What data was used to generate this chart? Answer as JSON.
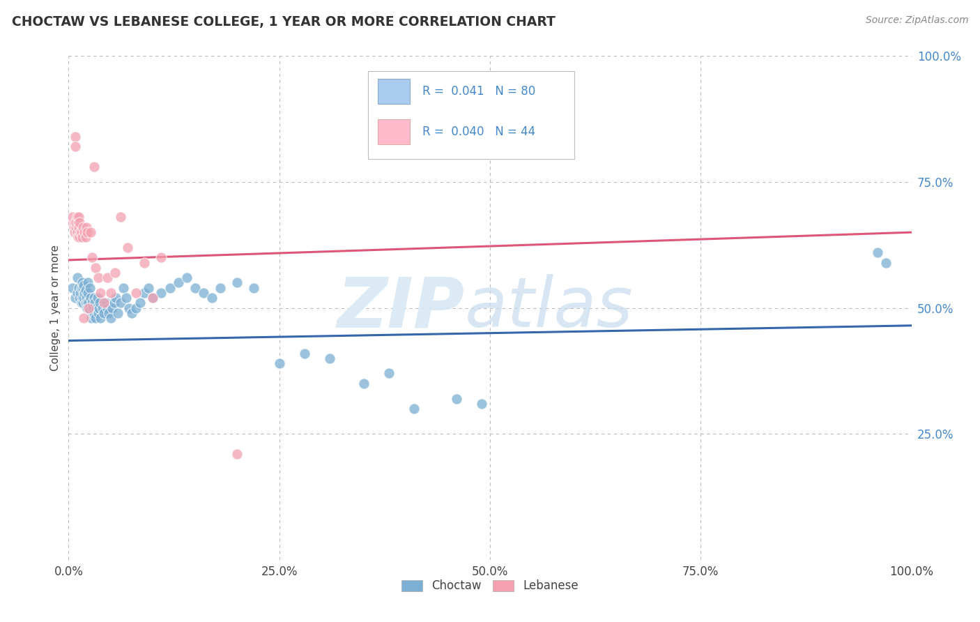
{
  "title": "CHOCTAW VS LEBANESE COLLEGE, 1 YEAR OR MORE CORRELATION CHART",
  "source_text": "Source: ZipAtlas.com",
  "ylabel": "College, 1 year or more",
  "xlim": [
    0.0,
    1.0
  ],
  "ylim": [
    0.0,
    1.0
  ],
  "x_tick_labels": [
    "0.0%",
    "25.0%",
    "50.0%",
    "75.0%",
    "100.0%"
  ],
  "x_tick_vals": [
    0.0,
    0.25,
    0.5,
    0.75,
    1.0
  ],
  "y_tick_labels": [
    "25.0%",
    "50.0%",
    "75.0%",
    "100.0%"
  ],
  "y_tick_vals": [
    0.25,
    0.5,
    0.75,
    1.0
  ],
  "choctaw_color": "#7BAFD4",
  "lebanese_color": "#F4A0B0",
  "choctaw_line_color": "#3366AA",
  "lebanese_line_color": "#DD5577",
  "R_choctaw": 0.041,
  "N_choctaw": 80,
  "R_lebanese": 0.04,
  "N_lebanese": 44,
  "legend_label_choctaw": "Choctaw",
  "legend_label_lebanese": "Lebanese",
  "watermark_zip": "ZIP",
  "watermark_atlas": "atlas",
  "background_color": "#FFFFFF",
  "grid_color": "#BBBBBB",
  "choctaw_x": [
    0.005,
    0.008,
    0.01,
    0.01,
    0.012,
    0.013,
    0.014,
    0.015,
    0.015,
    0.016,
    0.016,
    0.017,
    0.017,
    0.018,
    0.018,
    0.019,
    0.02,
    0.02,
    0.021,
    0.022,
    0.022,
    0.023,
    0.023,
    0.024,
    0.025,
    0.025,
    0.026,
    0.027,
    0.028,
    0.029,
    0.03,
    0.03,
    0.031,
    0.032,
    0.033,
    0.034,
    0.035,
    0.036,
    0.037,
    0.038,
    0.04,
    0.042,
    0.044,
    0.046,
    0.048,
    0.05,
    0.052,
    0.054,
    0.056,
    0.058,
    0.062,
    0.065,
    0.068,
    0.072,
    0.075,
    0.08,
    0.085,
    0.09,
    0.095,
    0.1,
    0.11,
    0.12,
    0.13,
    0.14,
    0.15,
    0.16,
    0.17,
    0.18,
    0.2,
    0.22,
    0.25,
    0.28,
    0.31,
    0.35,
    0.38,
    0.41,
    0.46,
    0.49,
    0.96,
    0.97
  ],
  "choctaw_y": [
    0.54,
    0.52,
    0.53,
    0.56,
    0.54,
    0.52,
    0.53,
    0.51,
    0.54,
    0.52,
    0.55,
    0.51,
    0.54,
    0.52,
    0.545,
    0.53,
    0.51,
    0.535,
    0.52,
    0.51,
    0.5,
    0.53,
    0.55,
    0.51,
    0.54,
    0.495,
    0.52,
    0.48,
    0.51,
    0.5,
    0.49,
    0.52,
    0.51,
    0.48,
    0.5,
    0.52,
    0.49,
    0.5,
    0.51,
    0.48,
    0.5,
    0.49,
    0.51,
    0.5,
    0.49,
    0.48,
    0.5,
    0.51,
    0.52,
    0.49,
    0.51,
    0.54,
    0.52,
    0.5,
    0.49,
    0.5,
    0.51,
    0.53,
    0.54,
    0.52,
    0.53,
    0.54,
    0.55,
    0.56,
    0.54,
    0.53,
    0.52,
    0.54,
    0.55,
    0.54,
    0.39,
    0.41,
    0.4,
    0.35,
    0.37,
    0.3,
    0.32,
    0.31,
    0.61,
    0.59
  ],
  "lebanese_x": [
    0.005,
    0.005,
    0.006,
    0.007,
    0.007,
    0.008,
    0.008,
    0.009,
    0.009,
    0.01,
    0.01,
    0.011,
    0.011,
    0.012,
    0.012,
    0.013,
    0.013,
    0.014,
    0.015,
    0.016,
    0.017,
    0.018,
    0.019,
    0.02,
    0.021,
    0.022,
    0.024,
    0.026,
    0.028,
    0.03,
    0.032,
    0.035,
    0.038,
    0.042,
    0.046,
    0.05,
    0.055,
    0.062,
    0.07,
    0.08,
    0.09,
    0.1,
    0.11,
    0.2
  ],
  "lebanese_y": [
    0.67,
    0.68,
    0.66,
    0.65,
    0.67,
    0.84,
    0.82,
    0.66,
    0.67,
    0.68,
    0.65,
    0.67,
    0.64,
    0.66,
    0.68,
    0.64,
    0.67,
    0.65,
    0.65,
    0.64,
    0.66,
    0.48,
    0.65,
    0.64,
    0.66,
    0.65,
    0.5,
    0.65,
    0.6,
    0.78,
    0.58,
    0.56,
    0.53,
    0.51,
    0.56,
    0.53,
    0.57,
    0.68,
    0.62,
    0.53,
    0.59,
    0.52,
    0.6,
    0.21
  ]
}
